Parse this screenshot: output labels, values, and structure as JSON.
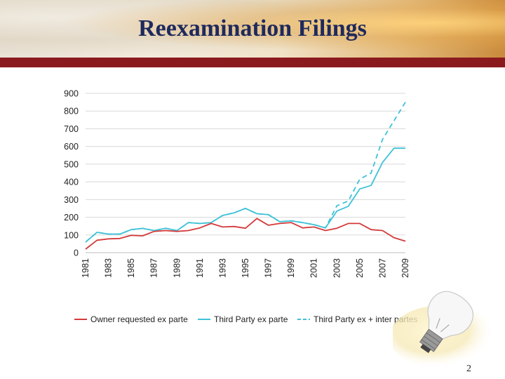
{
  "slide": {
    "title": "Reexamination Filings",
    "page_number": "2"
  },
  "colors": {
    "title": "#1f2a5c",
    "bar": "#8b1a1f",
    "owner": "#d43a3a",
    "third": "#3ec2d8"
  },
  "chart_data": {
    "type": "line",
    "title": "",
    "xlabel": "",
    "ylabel": "",
    "ylim": [
      0,
      900
    ],
    "yticks": [
      0,
      100,
      200,
      300,
      400,
      500,
      600,
      700,
      800,
      900
    ],
    "x": [
      1981,
      1982,
      1983,
      1984,
      1985,
      1986,
      1987,
      1988,
      1989,
      1990,
      1991,
      1992,
      1993,
      1994,
      1995,
      1996,
      1997,
      1998,
      1999,
      2000,
      2001,
      2002,
      2003,
      2004,
      2005,
      2006,
      2007,
      2008,
      2009
    ],
    "xticks": [
      "1981",
      "1983",
      "1985",
      "1987",
      "1989",
      "1991",
      "1993",
      "1995",
      "1997",
      "1999",
      "2001",
      "2003",
      "2005",
      "2007",
      "2009"
    ],
    "grid": true,
    "legend_position": "bottom",
    "series": [
      {
        "name": "Owner requested ex parte",
        "style": "solid",
        "values": [
          20,
          70,
          78,
          80,
          98,
          95,
          120,
          125,
          120,
          125,
          140,
          165,
          145,
          148,
          138,
          193,
          155,
          165,
          170,
          140,
          145,
          125,
          138,
          165,
          165,
          130,
          125,
          85,
          65
        ]
      },
      {
        "name": "Third Party ex parte",
        "style": "solid",
        "values": [
          60,
          115,
          105,
          105,
          130,
          137,
          125,
          138,
          125,
          170,
          165,
          170,
          210,
          225,
          250,
          220,
          215,
          175,
          180,
          170,
          158,
          140,
          235,
          262,
          360,
          380,
          510,
          590,
          590
        ]
      },
      {
        "name": "Third Party ex + inter partes",
        "style": "dashed",
        "values": [
          60,
          115,
          105,
          105,
          130,
          137,
          125,
          138,
          125,
          170,
          165,
          170,
          210,
          225,
          250,
          220,
          215,
          175,
          180,
          170,
          158,
          140,
          265,
          292,
          415,
          450,
          640,
          745,
          850
        ]
      }
    ]
  }
}
